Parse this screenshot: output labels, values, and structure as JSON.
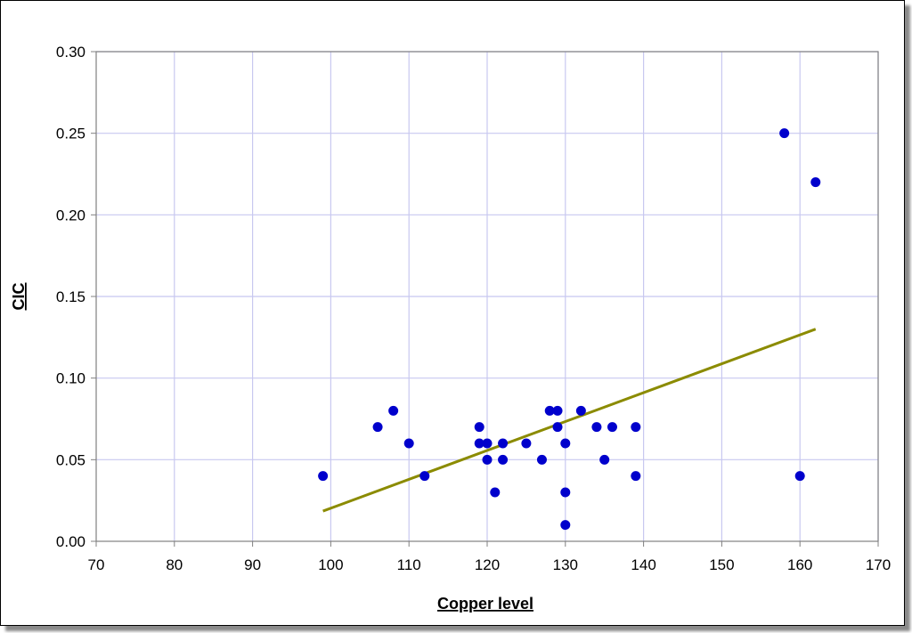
{
  "chart_data": {
    "type": "scatter",
    "title": "",
    "xlabel": "Copper level",
    "ylabel": "CIC",
    "xlim": [
      70,
      170
    ],
    "ylim": [
      0,
      0.3
    ],
    "x_ticks": [
      70,
      80,
      90,
      100,
      110,
      120,
      130,
      140,
      150,
      160,
      170
    ],
    "y_ticks": [
      0,
      0.05,
      0.1,
      0.15,
      0.2,
      0.25,
      0.3
    ],
    "y_tick_labels": [
      "0.00",
      "0.05",
      "0.10",
      "0.15",
      "0.20",
      "0.25",
      "0.30"
    ],
    "grid": true,
    "series": [
      {
        "points": [
          [
            99,
            0.04
          ],
          [
            106,
            0.07
          ],
          [
            108,
            0.08
          ],
          [
            110,
            0.06
          ],
          [
            112,
            0.04
          ],
          [
            119,
            0.07
          ],
          [
            119,
            0.06
          ],
          [
            120,
            0.06
          ],
          [
            120,
            0.05
          ],
          [
            121,
            0.03
          ],
          [
            122,
            0.06
          ],
          [
            122,
            0.05
          ],
          [
            125,
            0.06
          ],
          [
            127,
            0.05
          ],
          [
            128,
            0.08
          ],
          [
            129,
            0.08
          ],
          [
            129,
            0.07
          ],
          [
            130,
            0.06
          ],
          [
            130,
            0.03
          ],
          [
            130,
            0.01
          ],
          [
            132,
            0.08
          ],
          [
            134,
            0.07
          ],
          [
            135,
            0.05
          ],
          [
            136,
            0.07
          ],
          [
            139,
            0.07
          ],
          [
            139,
            0.04
          ],
          [
            158,
            0.25
          ],
          [
            160,
            0.04
          ],
          [
            162,
            0.22
          ]
        ]
      }
    ],
    "trendline": {
      "x": [
        99,
        162
      ],
      "y": [
        0.0185,
        0.13
      ]
    },
    "colors": {
      "points": "#0000cc",
      "trendline": "#8b8b00",
      "grid": "#c8c8f0",
      "axis": "#808080"
    }
  }
}
